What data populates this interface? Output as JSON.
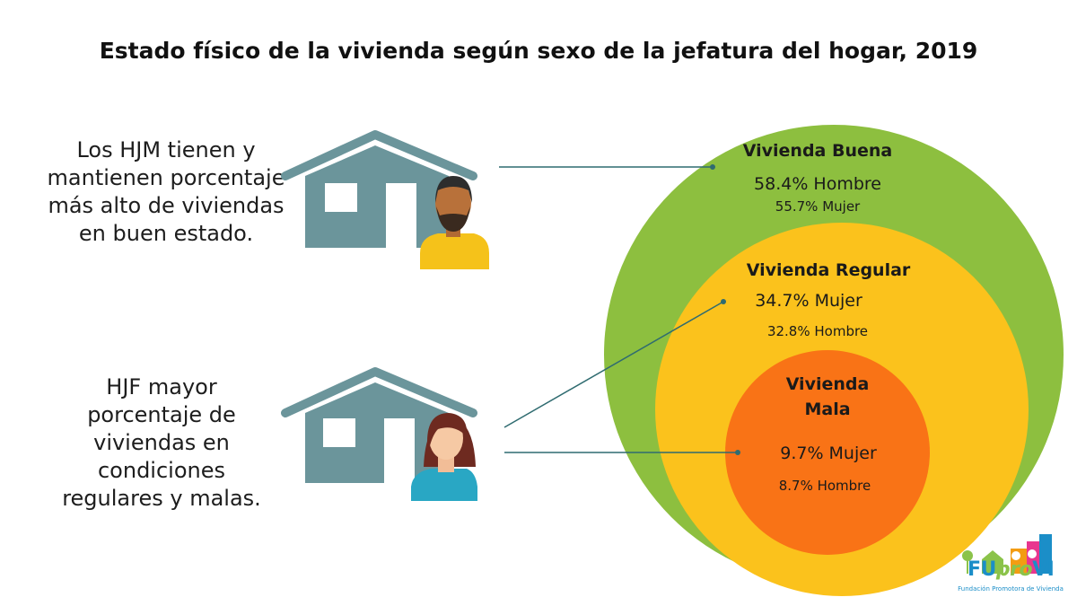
{
  "title": "Estado físico de la vivienda según sexo de la jefatura del hogar, 2019",
  "statements": {
    "men": "Los HJM tienen y mantienen porcentaje más alto de viviendas en buen estado.",
    "women": "HJF mayor porcentaje de viviendas en condiciones regulares y malas."
  },
  "circles": {
    "buena": {
      "heading": "Vivienda Buena",
      "line1": "58.4% Hombre",
      "line2": "55.7% Mujer",
      "color": "#8dbf3f"
    },
    "regular": {
      "heading": "Vivienda Regular",
      "line1": "34.7% Mujer",
      "line2": "32.8% Hombre",
      "color": "#fbc21c"
    },
    "mala": {
      "heading": "Vivienda Mala",
      "line1": "9.7% Mujer",
      "line2": "8.7% Hombre",
      "color": "#f97316"
    }
  },
  "colors": {
    "house": "#6b959b",
    "connector": "#2f6b70",
    "man_shirt": "#f5c21a",
    "woman_shirt": "#29a7c4"
  },
  "logo": {
    "word_left": "FU",
    "word_mid": "pro",
    "word_right": "VI",
    "subtitle": "Fundación Promotora de Vivienda"
  }
}
